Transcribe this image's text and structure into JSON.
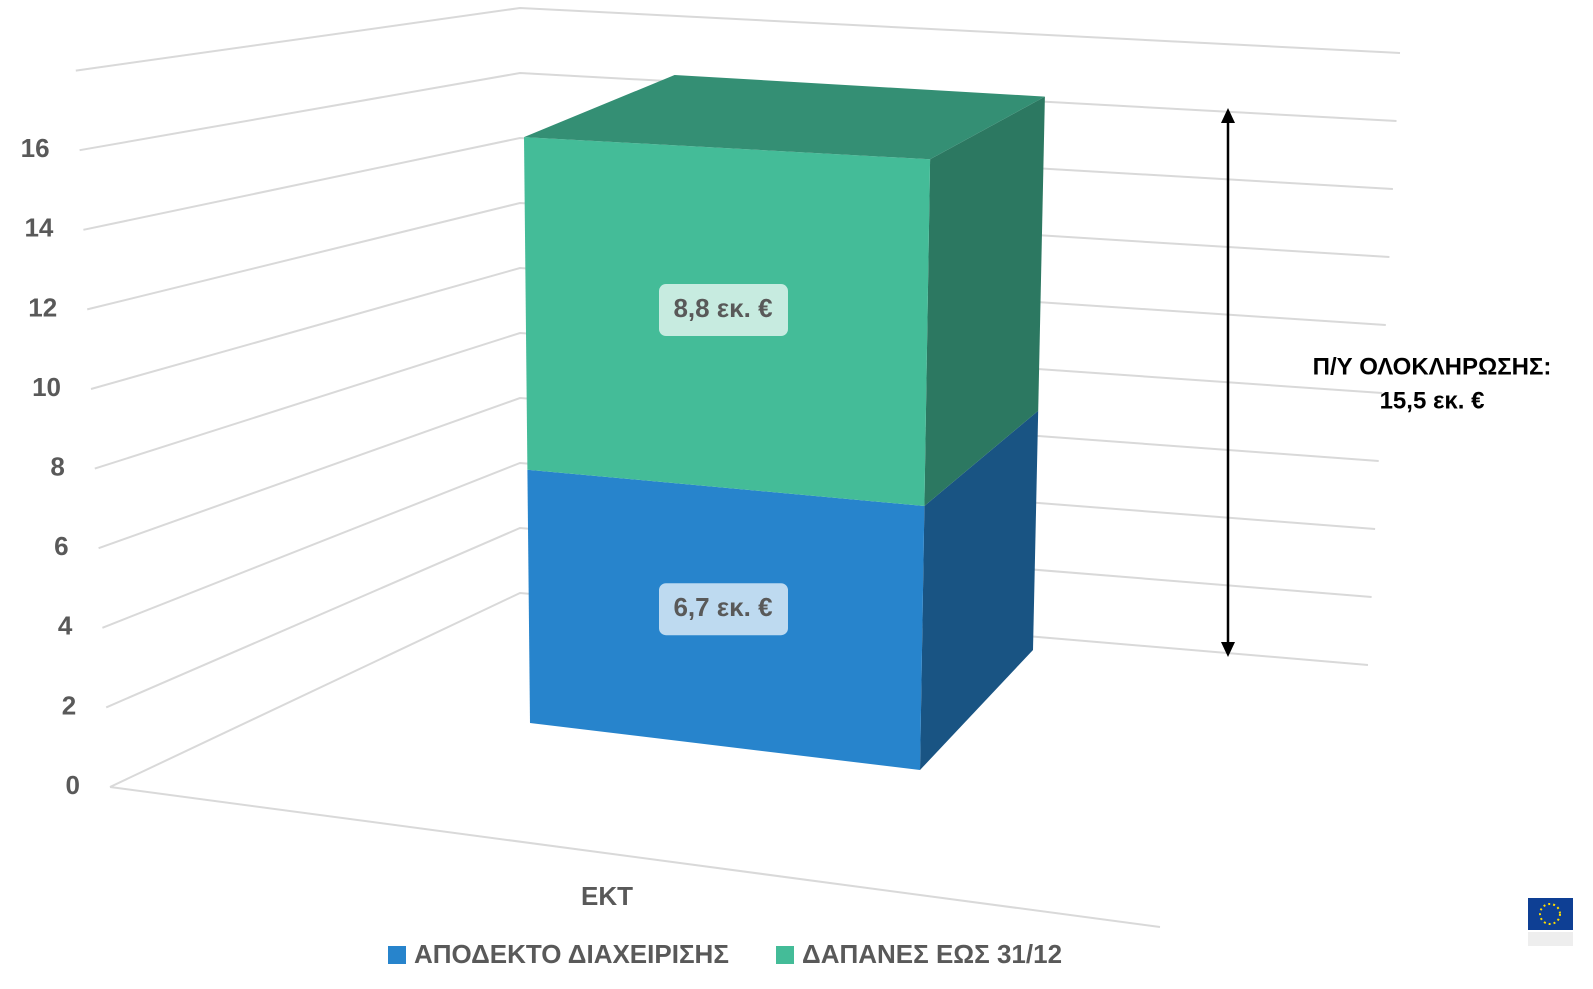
{
  "chart_data": {
    "type": "bar3d_stacked",
    "categories": [
      "ΕΚΤ"
    ],
    "series": [
      {
        "name": "ΑΠΟΔΕΚΤΟ ΔΙΑΧΕΙΡΙΣΗΣ",
        "color": "#2784cc",
        "values": [
          6.7
        ],
        "value_labels": [
          "6,7 εκ. €"
        ]
      },
      {
        "name": "ΔΑΠΑΝΕΣ ΕΩΣ 31/12",
        "color": "#44bc98",
        "values": [
          8.8
        ],
        "value_labels": [
          "8,8 εκ. €"
        ]
      }
    ],
    "ylim": [
      0,
      18
    ],
    "yticks": [
      0,
      2,
      4,
      6,
      8,
      10,
      12,
      14,
      16
    ],
    "grid": true,
    "legend": "bottom",
    "annotation": [
      "Π/Υ ΟΛΟΚΛΗΡΩΣΗΣ:",
      "15,5 εκ. €"
    ]
  }
}
